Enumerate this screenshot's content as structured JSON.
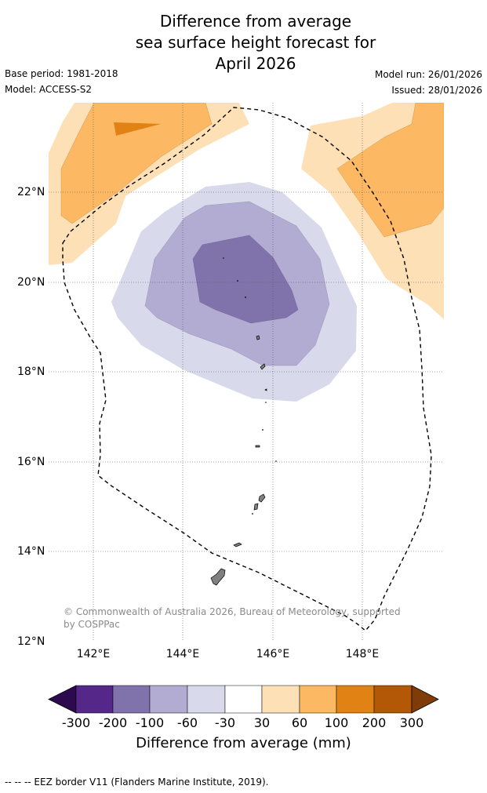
{
  "header": {
    "title_lines": [
      "Difference from average",
      "sea surface height forecast for",
      "April 2026"
    ],
    "base_period": "Base period: 1981-2018",
    "model": "Model: ACCESS-S2",
    "model_run": "Model run: 26/01/2026",
    "issued": "Issued: 28/01/2026"
  },
  "map": {
    "lat_labels": [
      "22°N",
      "20°N",
      "18°N",
      "16°N",
      "14°N",
      "12°N"
    ],
    "lon_labels": [
      "142°E",
      "144°E",
      "146°E",
      "148°E"
    ],
    "copyright": "© Commonwealth of Australia 2026, Bureau of Meteorology, supported by COSPPac",
    "legend_note": "--  --  -- EEZ border V11 (Flanders Marine Institute, 2019)."
  },
  "colorbar": {
    "ticks": [
      "-300",
      "-200",
      "-100",
      "-60",
      "-30",
      "30",
      "60",
      "100",
      "200",
      "300"
    ],
    "label": "Difference from average (mm)",
    "colors": [
      "#2d0a4d",
      "#542788",
      "#8073ac",
      "#b2abd2",
      "#d8daeb",
      "#ffffff",
      "#fee0b6",
      "#fdb863",
      "#e08214",
      "#b35806",
      "#7f3b08"
    ]
  }
}
